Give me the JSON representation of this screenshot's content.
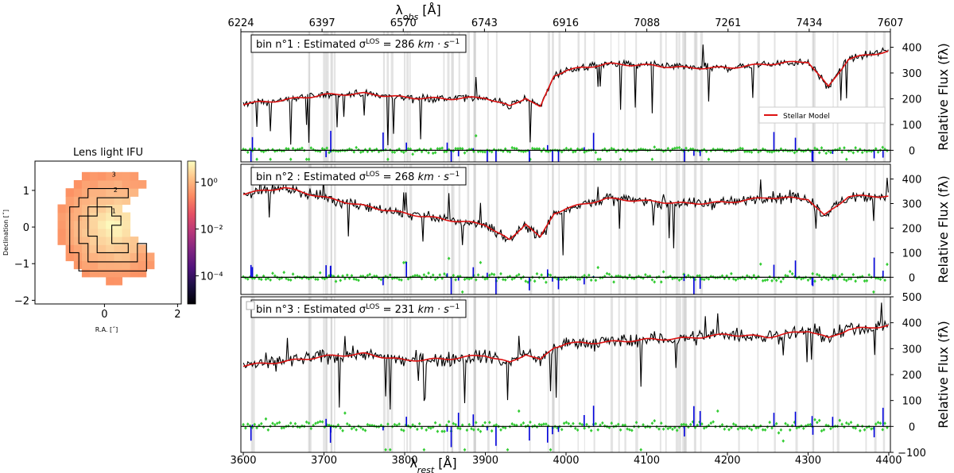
{
  "chart_data": [
    {
      "type": "heatmap",
      "title": "Lens light IFU",
      "xlabel": "R.A. [˝]",
      "ylabel": "Declination [˝]",
      "xlim": [
        -1.9,
        2.1
      ],
      "ylim": [
        -2.1,
        1.8
      ],
      "x_ticks": [
        "0",
        "2"
      ],
      "x_tick_values": [
        0,
        2
      ],
      "y_ticks": [
        "1",
        "0",
        "−1",
        "−2"
      ],
      "y_tick_values": [
        1,
        0,
        -1,
        -2
      ],
      "colorbar": {
        "scale": "log",
        "ticks": [
          "10⁰",
          "10⁻²",
          "10⁻⁴"
        ],
        "tick_values": [
          0,
          -2,
          -4
        ],
        "range_log10": [
          -5.2,
          0.9
        ]
      },
      "bin_labels": [
        {
          "text": "1",
          "x": 0.2,
          "y": 0.38
        },
        {
          "text": "2",
          "x": 0.25,
          "y": 0.95
        },
        {
          "text": "3",
          "x": 0.2,
          "y": 1.38
        }
      ]
    },
    {
      "type": "line",
      "top_axis_label": "λ_obs [Å]",
      "top_axis_ticks": [
        "6224",
        "6397",
        "6570",
        "6743",
        "6916",
        "7088",
        "7261",
        "7434",
        "7607"
      ],
      "xlabel": "λ_rest [Å]",
      "x_ticks": [
        "3600",
        "3700",
        "3800",
        "3900",
        "4000",
        "4100",
        "4200",
        "4300",
        "4400"
      ],
      "xlim": [
        3597,
        4402
      ],
      "colors": {
        "data": "#000000",
        "model": "#dd1111",
        "residual": "#33cc33",
        "masked_residual": "#0000dd",
        "mask_band": "#cccccc"
      },
      "legend": {
        "entries": [
          "Stellar Model"
        ],
        "placement": "right"
      },
      "panels": [
        {
          "bin_label": "bin n°1 : Estimated σ",
          "sigma_text": "= 286",
          "unit_text": "km · s",
          "sigma_value": 286,
          "ylabel": "Relative Flux (fλ)",
          "ylim": [
            -45,
            460
          ],
          "y_ticks": [
            "0",
            "100",
            "200",
            "300",
            "400"
          ],
          "y_tick_values": [
            0,
            100,
            200,
            300,
            400
          ],
          "model_flux": {
            "x": [
              3600,
              3650,
              3700,
              3750,
              3800,
              3850,
              3900,
              3930,
              3950,
              3968,
              3985,
              4000,
              4050,
              4100,
              4150,
              4200,
              4250,
              4300,
              4325,
              4350,
              4375,
              4400
            ],
            "y": [
              180,
              195,
              215,
              220,
              205,
              200,
              205,
              170,
              205,
              165,
              290,
              310,
              335,
              330,
              320,
              320,
              335,
              345,
              245,
              355,
              370,
              385
            ]
          }
        },
        {
          "bin_label": "bin n°2 : Estimated σ",
          "sigma_text": "= 268",
          "unit_text": "km · s",
          "sigma_value": 268,
          "ylabel": "Relative Flux (fλ)",
          "ylim": [
            -70,
            460
          ],
          "y_ticks": [
            "0",
            "100",
            "200",
            "300",
            "400"
          ],
          "y_tick_values": [
            0,
            100,
            200,
            300,
            400
          ],
          "model_flux": {
            "x": [
              3600,
              3650,
              3700,
              3750,
              3800,
              3850,
              3900,
              3930,
              3950,
              3968,
              3985,
              4000,
              4050,
              4100,
              4150,
              4200,
              4250,
              4300,
              4320,
              4350,
              4375,
              4400
            ],
            "y": [
              340,
              365,
              325,
              290,
              260,
              235,
              215,
              150,
              220,
              160,
              260,
              280,
              320,
              310,
              300,
              305,
              325,
              320,
              250,
              330,
              330,
              330
            ]
          }
        },
        {
          "bin_label": "bin n°3 : Estimated σ",
          "sigma_text": "= 231",
          "unit_text": "km · s",
          "sigma_value": 231,
          "ylabel": "Relative Flux (fλ)",
          "ylim": [
            -100,
            500
          ],
          "y_ticks": [
            "−100",
            "0",
            "100",
            "200",
            "300",
            "400",
            "500"
          ],
          "y_tick_values": [
            -100,
            0,
            100,
            200,
            300,
            400,
            500
          ],
          "model_flux": {
            "x": [
              3600,
              3650,
              3700,
              3750,
              3800,
              3850,
              3900,
              3930,
              3950,
              3968,
              3985,
              4000,
              4050,
              4100,
              4150,
              4200,
              4250,
              4300,
              4325,
              4350,
              4375,
              4400
            ],
            "y": [
              235,
              250,
              270,
              280,
              255,
              260,
              275,
              245,
              280,
              255,
              305,
              320,
              325,
              335,
              340,
              355,
              345,
              370,
              340,
              375,
              380,
              390
            ]
          }
        }
      ]
    }
  ]
}
